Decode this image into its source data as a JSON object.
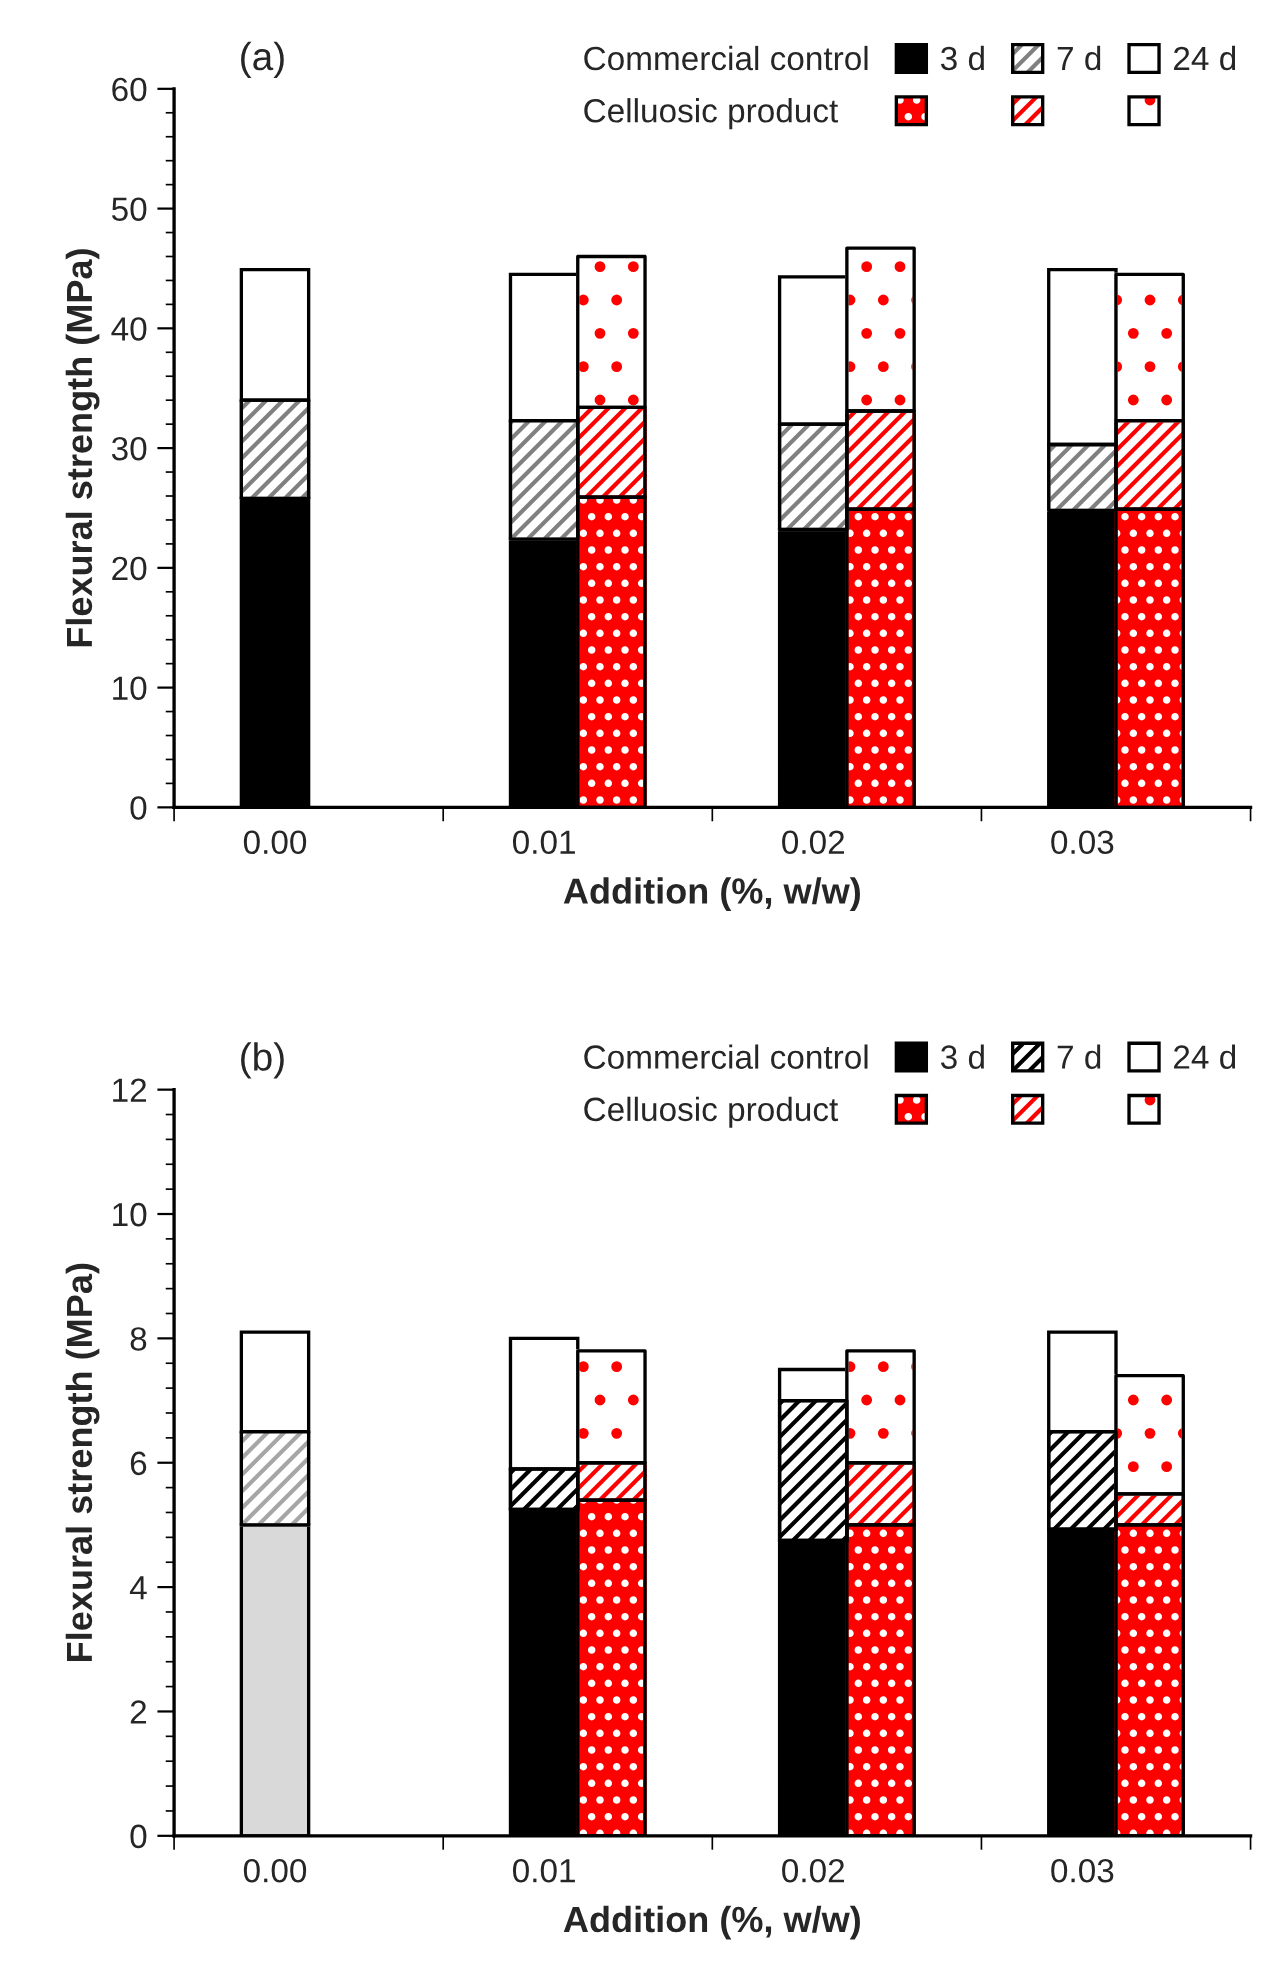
{
  "chart_data": [
    {
      "type": "bar",
      "stacked": true,
      "title": "(a)",
      "xlabel": "Addition (%, w/w)",
      "ylabel": "Flexural strength (MPa)",
      "categories": [
        null,
        "0.00",
        null,
        null,
        null,
        "0.01",
        null,
        null,
        null,
        "0.02",
        null,
        null,
        null,
        "0.03",
        null,
        null
      ],
      "ylim": [
        0,
        60
      ],
      "yticks": [
        0,
        10,
        20,
        30,
        40,
        50,
        60
      ],
      "legend": "top right",
      "annotations": [
        "Commercial control",
        "Celluosic product"
      ],
      "series": [
        {
          "name": "3 d",
          "color": "#000000",
          "colors": [
            null,
            "#000000",
            null,
            null,
            null,
            "#000000",
            "#ff0000",
            null,
            null,
            "#000000",
            "#ff0000",
            null,
            null,
            "#000000",
            "#ff0000",
            null
          ],
          "values": [
            null,
            25.8,
            null,
            null,
            null,
            22.4,
            25.9,
            null,
            null,
            23.2,
            24.9,
            null,
            null,
            24.8,
            24.9,
            null
          ]
        },
        {
          "name": "7 d",
          "color": "#808080",
          "colors": [
            null,
            "#808080",
            null,
            null,
            null,
            "#808080",
            "#ff0000",
            null,
            null,
            "#808080",
            "#ff0000",
            null,
            null,
            "#808080",
            "#ff0000",
            null
          ],
          "values": [
            null,
            8.2,
            null,
            null,
            null,
            9.9,
            7.5,
            null,
            null,
            8.8,
            8.2,
            null,
            null,
            5.5,
            7.4,
            null
          ]
        },
        {
          "name": "24 d",
          "color": "#ffffff",
          "values": [
            null,
            10.9,
            null,
            null,
            null,
            12.2,
            12.6,
            null,
            null,
            12.3,
            13.6,
            null,
            null,
            14.6,
            12.2,
            null
          ]
        }
      ]
    },
    {
      "type": "bar",
      "stacked": true,
      "title": "(b)",
      "xlabel": "Addition (%, w/w)",
      "ylabel": "Flexural strength (MPa)",
      "categories": [
        null,
        "0.00",
        null,
        null,
        null,
        "0.01",
        null,
        null,
        null,
        "0.02",
        null,
        null,
        null,
        "0.03",
        null,
        null
      ],
      "ylim": [
        0,
        12
      ],
      "yticks": [
        0,
        2,
        4,
        6,
        8,
        10,
        12
      ],
      "legend": "top right",
      "annotations": [
        "Commercial control",
        "Celluosic product"
      ],
      "series": [
        {
          "name": "3 d",
          "color": "#000000",
          "colors": [
            null,
            "#d9d9d9",
            null,
            null,
            null,
            "#000000",
            "#ff0000",
            null,
            null,
            "#000000",
            "#ff0000",
            null,
            null,
            "#000000",
            "#ff0000",
            null
          ],
          "values": [
            null,
            5.0,
            null,
            null,
            null,
            5.25,
            5.4,
            null,
            null,
            4.75,
            5.0,
            null,
            null,
            4.93,
            5.0,
            null
          ]
        },
        {
          "name": "7 d",
          "color": "#000000",
          "colors": [
            null,
            "#a6a6a6",
            null,
            null,
            null,
            "#000000",
            "#ff0000",
            null,
            null,
            "#000000",
            "#ff0000",
            null,
            null,
            "#000000",
            "#ff0000",
            null
          ],
          "values": [
            null,
            1.5,
            null,
            null,
            null,
            0.65,
            0.6,
            null,
            null,
            2.25,
            1.0,
            null,
            null,
            1.57,
            0.5,
            null
          ]
        },
        {
          "name": "24 d",
          "color": "#ffffff",
          "values": [
            null,
            1.6,
            null,
            null,
            null,
            2.1,
            1.8,
            null,
            null,
            0.5,
            1.8,
            null,
            null,
            1.6,
            1.9,
            null
          ]
        }
      ]
    }
  ]
}
